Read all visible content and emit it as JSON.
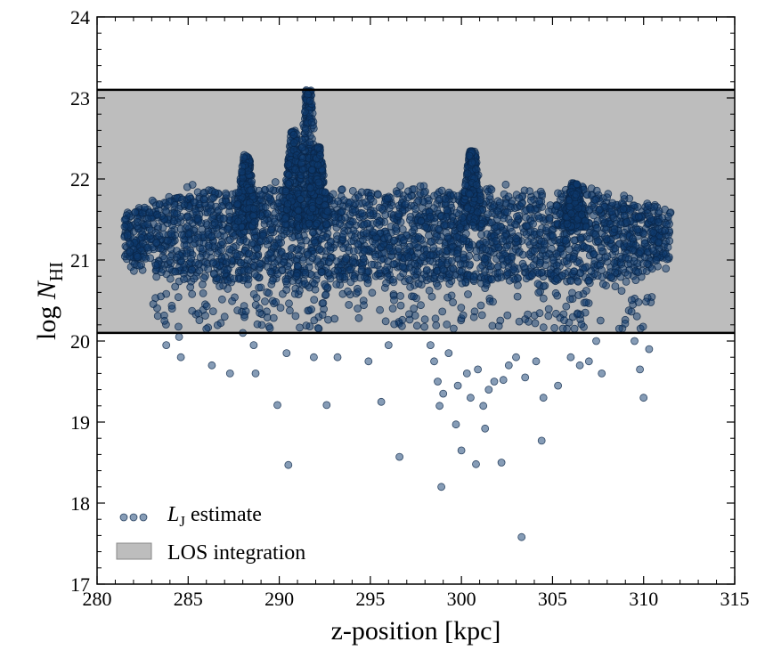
{
  "chart_data": {
    "type": "scatter",
    "title": "",
    "xlabel": "z-position [kpc]",
    "ylabel": {
      "prefix": "log ",
      "var": "N",
      "sub": "HI"
    },
    "xlim": [
      280,
      315
    ],
    "ylim": [
      17,
      24
    ],
    "xticks": [
      280,
      285,
      290,
      295,
      300,
      305,
      310,
      315
    ],
    "yticks": [
      17,
      18,
      19,
      20,
      21,
      22,
      23,
      24
    ],
    "grid": false,
    "legend_position": "bottom-left",
    "shaded_band": {
      "name": "LOS integration",
      "ymin": 20.1,
      "ymax": 23.1,
      "color": "#bdbdbd",
      "edge_color": "#000000"
    },
    "series": [
      {
        "name": {
          "var": "L",
          "sub": "J",
          "rest": " estimate"
        },
        "color": "#0e3a6e",
        "edge_color": "#0a2547",
        "opacity": 0.5,
        "x_range": [
          281.5,
          311.5
        ],
        "dense_core_y": [
          20.8,
          21.9
        ],
        "clumps": [
          {
            "x": 288.2,
            "y_peak": 22.3
          },
          {
            "x": 290.8,
            "y_peak": 22.6
          },
          {
            "x": 291.6,
            "y_peak": 23.1
          },
          {
            "x": 292.1,
            "y_peak": 22.4
          },
          {
            "x": 300.6,
            "y_peak": 22.35
          },
          {
            "x": 306.2,
            "y_peak": 21.95
          }
        ],
        "points": [
          [
            281.8,
            21.1
          ],
          [
            283.5,
            20.55
          ],
          [
            283.7,
            20.25
          ],
          [
            283.8,
            19.95
          ],
          [
            284.5,
            20.05
          ],
          [
            284.6,
            19.8
          ],
          [
            286.0,
            20.15
          ],
          [
            286.3,
            19.7
          ],
          [
            287.0,
            20.3
          ],
          [
            287.3,
            19.6
          ],
          [
            288.0,
            20.1
          ],
          [
            288.6,
            19.95
          ],
          [
            288.7,
            19.6
          ],
          [
            289.9,
            19.21
          ],
          [
            290.4,
            19.85
          ],
          [
            290.5,
            18.47
          ],
          [
            291.9,
            19.8
          ],
          [
            292.6,
            19.21
          ],
          [
            293.2,
            19.8
          ],
          [
            294.9,
            19.75
          ],
          [
            295.6,
            19.25
          ],
          [
            296.0,
            19.95
          ],
          [
            296.6,
            18.57
          ],
          [
            298.3,
            19.95
          ],
          [
            298.5,
            19.75
          ],
          [
            298.7,
            19.5
          ],
          [
            298.8,
            19.2
          ],
          [
            298.9,
            18.2
          ],
          [
            299.0,
            19.35
          ],
          [
            299.3,
            19.85
          ],
          [
            299.7,
            18.97
          ],
          [
            299.8,
            19.45
          ],
          [
            300.0,
            18.65
          ],
          [
            300.3,
            19.6
          ],
          [
            300.5,
            19.3
          ],
          [
            300.8,
            18.48
          ],
          [
            300.9,
            19.65
          ],
          [
            301.2,
            19.2
          ],
          [
            301.3,
            18.92
          ],
          [
            301.5,
            19.4
          ],
          [
            301.8,
            19.5
          ],
          [
            302.2,
            18.5
          ],
          [
            302.3,
            19.52
          ],
          [
            302.6,
            19.7
          ],
          [
            303.0,
            19.8
          ],
          [
            303.3,
            17.58
          ],
          [
            303.5,
            19.55
          ],
          [
            304.1,
            19.75
          ],
          [
            304.4,
            18.77
          ],
          [
            304.5,
            19.3
          ],
          [
            305.3,
            19.45
          ],
          [
            306.0,
            19.8
          ],
          [
            306.5,
            19.7
          ],
          [
            307.0,
            19.75
          ],
          [
            307.4,
            20.0
          ],
          [
            307.7,
            19.6
          ],
          [
            309.5,
            20.0
          ],
          [
            309.8,
            19.65
          ],
          [
            310.0,
            19.3
          ],
          [
            310.3,
            19.9
          ]
        ]
      }
    ]
  }
}
